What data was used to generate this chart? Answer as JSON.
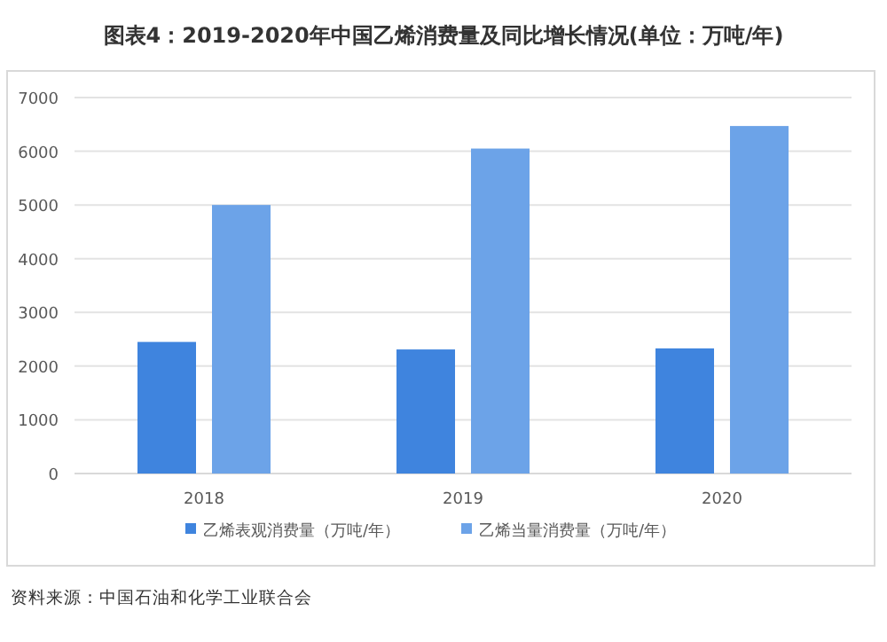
{
  "chart_data": {
    "type": "bar",
    "title": "图表4：2019-2020年中国乙烯消费量及同比增长情况(单位：万吨/年)",
    "categories": [
      "2018",
      "2019",
      "2020"
    ],
    "series": [
      {
        "name": "乙烯表观消费量（万吨/年）",
        "color": "#3f84de",
        "values": [
          2450,
          2310,
          2330
        ]
      },
      {
        "name": "乙烯当量消费量（万吨/年）",
        "color": "#6ca3e8",
        "values": [
          5000,
          6050,
          6470
        ]
      }
    ],
    "ylim": [
      0,
      7000
    ],
    "yticks": [
      0,
      1000,
      2000,
      3000,
      4000,
      5000,
      6000,
      7000
    ],
    "grid": "y",
    "legend": "bottom",
    "annotations": [
      "资料来源：中国石油和化学工业联合会"
    ]
  }
}
